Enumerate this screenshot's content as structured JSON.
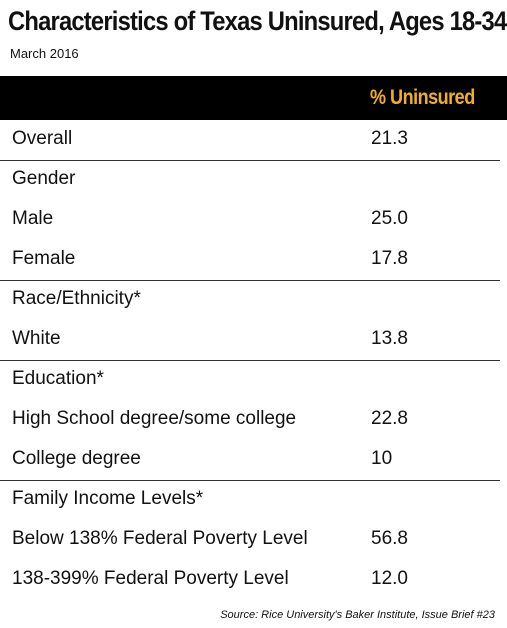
{
  "header": {
    "title": "Characteristics of Texas Uninsured, Ages 18-34",
    "subtitle": "March 2016"
  },
  "colors": {
    "header_background": "#000000",
    "header_text": "#f2b01e",
    "text": "#111111",
    "divider": "#333333"
  },
  "table": {
    "column_header": "% Uninsured",
    "rows": [
      {
        "label": "Overall",
        "value": "21.3"
      },
      {
        "label": "Gender",
        "value": ""
      },
      {
        "label": "Male",
        "value": "25.0"
      },
      {
        "label": "Female",
        "value": "17.8"
      },
      {
        "label": "Race/Ethnicity*",
        "value": ""
      },
      {
        "label": "White",
        "value": "13.8"
      },
      {
        "label": "Education*",
        "value": ""
      },
      {
        "label": "High School degree/some college",
        "value": "22.8"
      },
      {
        "label": "College degree",
        "value": "10"
      },
      {
        "label": "Family Income Levels*",
        "value": ""
      },
      {
        "label": "Below 138%  Federal Poverty Level",
        "value": "56.8"
      },
      {
        "label": "138-399% Federal Poverty Level",
        "value": "12.0"
      }
    ]
  },
  "footer": {
    "source": "Source: Rice University's Baker Institute, Issue Brief #23"
  },
  "chart_data": {
    "type": "table",
    "title": "Characteristics of Texas Uninsured, Ages 18-34",
    "subtitle": "March 2016",
    "columns": [
      "",
      "% Uninsured"
    ],
    "rows": [
      [
        "Overall",
        21.3
      ],
      [
        "Gender",
        null
      ],
      [
        "Male",
        25.0
      ],
      [
        "Female",
        17.8
      ],
      [
        "Race/Ethnicity*",
        null
      ],
      [
        "White",
        13.8
      ],
      [
        "Education*",
        null
      ],
      [
        "High School degree/some college",
        22.8
      ],
      [
        "College degree",
        10
      ],
      [
        "Family Income Levels*",
        null
      ],
      [
        "Below 138%  Federal Poverty Level",
        56.8
      ],
      [
        "138-399% Federal Poverty Level",
        12.0
      ]
    ],
    "source": "Source: Rice University's Baker Institute, Issue Brief #23"
  }
}
